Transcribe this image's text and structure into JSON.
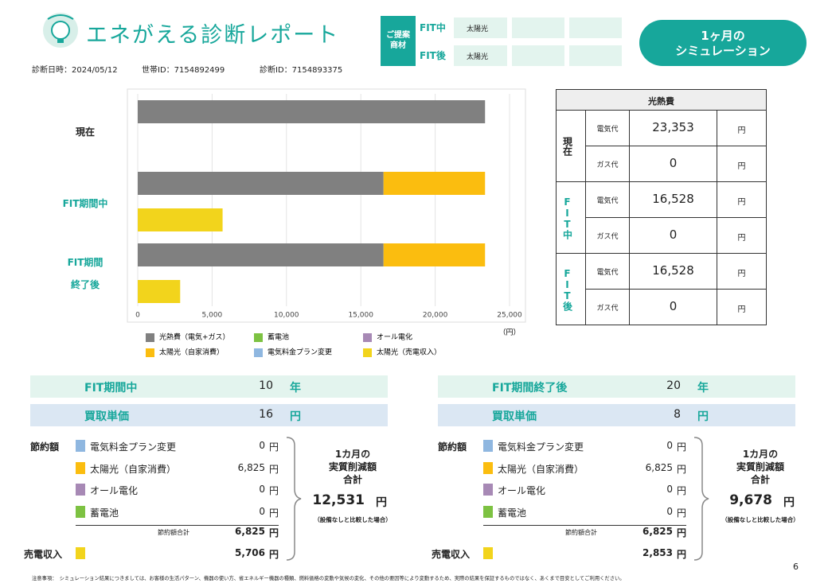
{
  "header": {
    "title": "エネがえる診断レポート",
    "date": "診断日時：2024/05/12",
    "household_id": "世帯ID：7154892499",
    "diagnosis_id": "診断ID：7154893375"
  },
  "proposal": {
    "label": "ご提案\n商材",
    "rows": [
      {
        "name": "FIT中",
        "item": "太陽光"
      },
      {
        "name": "FIT後",
        "item": "太陽光"
      }
    ]
  },
  "button": "1ヶ月の\nシミュレーション",
  "chart_data": {
    "type": "bar",
    "orientation": "horizontal",
    "categories": [
      "現在",
      "FIT期間中",
      "FIT期間\n終了後"
    ],
    "category_colors": [
      "#222222",
      "#17a79b",
      "#17a79b"
    ],
    "series": [
      {
        "name": "光熱費（電気+ガス）",
        "color": "#808080",
        "values": [
          23353,
          16528,
          16528
        ]
      },
      {
        "name": "蓄電池",
        "color": "#7dc242",
        "values": [
          0,
          0,
          0
        ]
      },
      {
        "name": "オール電化",
        "color": "#a789b5",
        "values": [
          0,
          0,
          0
        ]
      },
      {
        "name": "太陽光（自家消費）",
        "color": "#fbbd0f",
        "values": [
          0,
          6825,
          6825
        ]
      },
      {
        "name": "電気料金プラン変更",
        "color": "#8fb7e0",
        "values": [
          0,
          0,
          0
        ]
      },
      {
        "name": "太陽光（売電収入）",
        "color": "#f2d41c",
        "values": [
          0,
          5706,
          2853
        ],
        "separate": true
      }
    ],
    "xlim": [
      0,
      25000
    ],
    "xticks": [
      0,
      {
        "value": 5000,
        "label": "5,000"
      },
      {
        "value": 10000,
        "label": "10,000"
      },
      {
        "value": 15000,
        "label": "15,000"
      },
      {
        "value": 20000,
        "label": "20,000"
      },
      {
        "value": 25000,
        "label": "25,000"
      }
    ],
    "x_unit": "（円）",
    "grid": true,
    "legend": "bottom"
  },
  "cost_table": {
    "title": "光熱費",
    "groups": [
      {
        "name": "現在",
        "rows": [
          {
            "label": "電気代",
            "value": "23,353",
            "unit": "円"
          },
          {
            "label": "ガス代",
            "value": "0",
            "unit": "円"
          }
        ]
      },
      {
        "name": "FIT中",
        "rows": [
          {
            "label": "電気代",
            "value": "16,528",
            "unit": "円"
          },
          {
            "label": "ガス代",
            "value": "0",
            "unit": "円"
          }
        ]
      },
      {
        "name": "FIT後",
        "rows": [
          {
            "label": "電気代",
            "value": "16,528",
            "unit": "円"
          },
          {
            "label": "ガス代",
            "value": "0",
            "unit": "円"
          }
        ]
      }
    ]
  },
  "panels": [
    {
      "period_label": "FIT期間中",
      "period_value": "10",
      "period_unit": "年",
      "price_label": "買取単価",
      "price_value": "16",
      "unit": "円",
      "savings_label": "節約額",
      "items": [
        {
          "name": "電気料金プラン変更",
          "color": "#8fb7e0",
          "value": "0"
        },
        {
          "name": "太陽光（自家消費）",
          "color": "#fbbd0f",
          "value": "6,825"
        },
        {
          "name": "オール電化",
          "color": "#a789b5",
          "value": "0"
        },
        {
          "name": "蓄電池",
          "color": "#7dc242",
          "value": "0"
        }
      ],
      "subtotal_label": "節約額合計",
      "subtotal": "6,825",
      "sales_label": "売電収入",
      "sales_color": "#f2d41c",
      "sales": "5,706",
      "total_title": "1カ月の\n実質削減額\n合計",
      "total": "12,531",
      "total_note": "（設備なしと比較した場合）"
    },
    {
      "period_label": "FIT期間終了後",
      "period_value": "20",
      "period_unit": "年",
      "price_label": "買取単価",
      "price_value": "8",
      "unit": "円",
      "savings_label": "節約額",
      "items": [
        {
          "name": "電気料金プラン変更",
          "color": "#8fb7e0",
          "value": "0"
        },
        {
          "name": "太陽光（自家消費）",
          "color": "#fbbd0f",
          "value": "6,825"
        },
        {
          "name": "オール電化",
          "color": "#a789b5",
          "value": "0"
        },
        {
          "name": "蓄電池",
          "color": "#7dc242",
          "value": "0"
        }
      ],
      "subtotal_label": "節約額合計",
      "subtotal": "6,825",
      "sales_label": "売電収入",
      "sales_color": "#f2d41c",
      "sales": "2,853",
      "total_title": "1カ月の\n実質削減額\n合計",
      "total": "9,678",
      "total_note": "（設備なしと比較した場合）"
    }
  ],
  "footer": {
    "note": "注意事項：　シミュレーション結果につきましては、お客様の生活パターン、機器の使い方、省エネルギー機器の種類、燃料価格の変動や気候の変化、その他の要因等により変動するため、実際の結果を保証するものではなく、あくまで目安としてご利用ください。",
    "page": "6"
  }
}
